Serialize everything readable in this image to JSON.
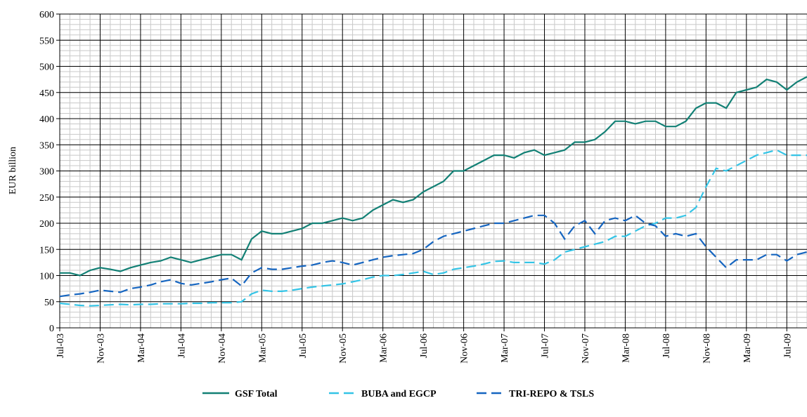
{
  "chart_data": {
    "type": "line",
    "ylabel": "EUR billion",
    "categories": [
      "Jul-03",
      null,
      null,
      null,
      "Nov-03",
      null,
      null,
      null,
      "Mar-04",
      null,
      null,
      null,
      "Jul-04",
      null,
      null,
      null,
      "Nov-04",
      null,
      null,
      null,
      "Mar-05",
      null,
      null,
      null,
      "Jul-05",
      null,
      null,
      null,
      "Nov-05",
      null,
      null,
      null,
      "Mar-06",
      null,
      null,
      null,
      "Jul-06",
      null,
      null,
      null,
      "Nov-06",
      null,
      null,
      null,
      "Mar-07",
      null,
      null,
      null,
      "Jul-07",
      null,
      null,
      null,
      "Nov-07",
      null,
      null,
      null,
      "Mar-08",
      null,
      null,
      null,
      "Jul-08",
      null,
      null,
      null,
      "Nov-08",
      null,
      null,
      null,
      "Mar-09",
      null,
      null,
      null,
      "Jul-09",
      null,
      null
    ],
    "series": [
      {
        "name": "GSF Total",
        "color": "#128075",
        "style": "solid",
        "values": [
          105,
          105,
          100,
          110,
          115,
          112,
          108,
          115,
          120,
          125,
          128,
          135,
          130,
          125,
          130,
          135,
          140,
          140,
          130,
          170,
          185,
          180,
          180,
          185,
          190,
          200,
          200,
          205,
          210,
          205,
          210,
          225,
          235,
          245,
          240,
          245,
          260,
          270,
          280,
          300,
          300,
          310,
          320,
          330,
          330,
          325,
          335,
          340,
          330,
          335,
          340,
          355,
          355,
          360,
          375,
          395,
          395,
          390,
          395,
          395,
          385,
          385,
          395,
          420,
          430,
          430,
          420,
          450,
          455,
          460,
          475,
          470,
          455,
          470,
          480
        ]
      },
      {
        "name": "BUBA and EGCP",
        "color": "#33c4e6",
        "style": "dashed",
        "values": [
          47,
          45,
          43,
          42,
          43,
          44,
          45,
          44,
          45,
          45,
          46,
          46,
          46,
          47,
          47,
          48,
          48,
          48,
          50,
          65,
          72,
          70,
          70,
          72,
          75,
          78,
          80,
          82,
          84,
          88,
          92,
          97,
          100,
          100,
          102,
          105,
          108,
          102,
          105,
          112,
          115,
          118,
          122,
          127,
          128,
          125,
          125,
          125,
          122,
          130,
          145,
          150,
          155,
          160,
          165,
          175,
          175,
          185,
          195,
          200,
          210,
          210,
          215,
          230,
          270,
          305,
          300,
          310,
          320,
          330,
          335,
          340,
          330,
          330,
          330
        ]
      },
      {
        "name": "TRI-REPO & TSLS",
        "color": "#1565c0",
        "style": "dashed",
        "values": [
          60,
          63,
          65,
          68,
          72,
          70,
          68,
          75,
          78,
          82,
          88,
          92,
          85,
          82,
          85,
          88,
          92,
          95,
          80,
          105,
          115,
          112,
          112,
          115,
          118,
          120,
          125,
          128,
          125,
          120,
          125,
          130,
          135,
          138,
          140,
          142,
          150,
          165,
          175,
          180,
          185,
          190,
          195,
          200,
          200,
          205,
          210,
          215,
          215,
          200,
          170,
          195,
          205,
          180,
          205,
          210,
          205,
          215,
          200,
          195,
          175,
          180,
          175,
          180,
          155,
          135,
          115,
          130,
          130,
          130,
          140,
          140,
          128,
          140,
          145
        ]
      }
    ],
    "ylim": [
      0,
      600
    ],
    "yticks": [
      0,
      50,
      100,
      150,
      200,
      250,
      300,
      350,
      400,
      450,
      500,
      550,
      600
    ],
    "grid": true,
    "minor_grid_step": 10,
    "legend": "bottom"
  }
}
